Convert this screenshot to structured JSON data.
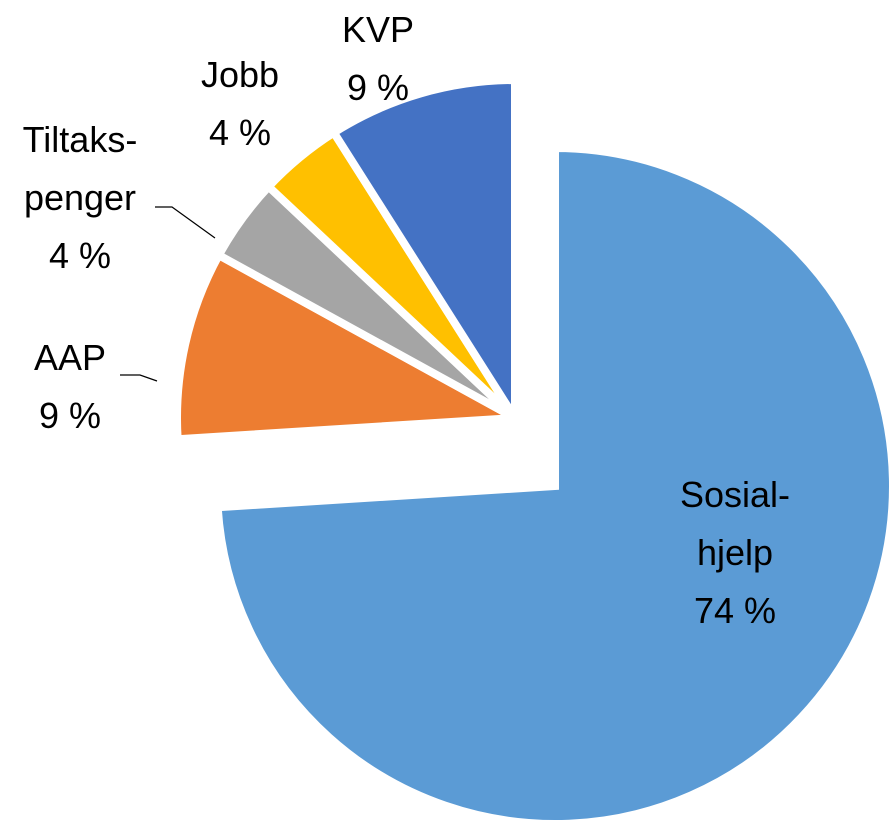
{
  "chart_data": {
    "type": "pie",
    "categories": [
      "Sosial-\nhjelp",
      "AAP",
      "Tiltaks-\npenger",
      "Jobb",
      "KVP"
    ],
    "values": [
      74,
      9,
      4,
      4,
      9
    ],
    "value_labels": [
      "74 %",
      "9 %",
      "4 %",
      "4 %",
      "9 %"
    ],
    "colors": [
      "#5b9bd5",
      "#ed7d31",
      "#a5a5a5",
      "#ffc000",
      "#4472c4"
    ]
  }
}
